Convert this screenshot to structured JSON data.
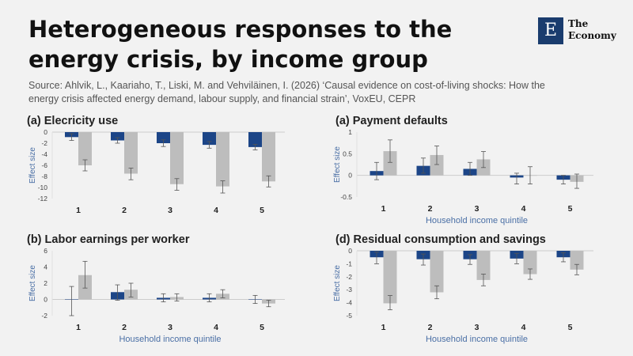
{
  "header": {
    "title": "Heterogeneous responses to the energy crisis, by income group",
    "source": "Source: Ahlvik, L., Kaariaho, T., Liski, M. and Vehviläinen, I. (2026) ‘Causal evidence on cost-of-living shocks: How the energy crisis affected energy demand, labour supply, and financial strain’, VoxEU, CEPR"
  },
  "logo": {
    "mark": "E",
    "line1": "The",
    "line2": "Economy"
  },
  "colors": {
    "series_a": "#1c4587",
    "series_b": "#bdbdbd",
    "axis": "#cccccc",
    "text": "#444444",
    "label": "#4a6fa5"
  },
  "chart_data": [
    {
      "id": "electricity",
      "type": "bar",
      "title": "(a) Elecricity use",
      "xlabel": "",
      "ylabel": "Effect size",
      "categories": [
        "1",
        "2",
        "3",
        "4",
        "5"
      ],
      "ylim": [
        -12,
        0
      ],
      "yticks": [
        0,
        -2,
        -4,
        -6,
        -8,
        -10,
        -12
      ],
      "series": [
        {
          "values": [
            -0.9,
            -1.5,
            -2.0,
            -2.3,
            -2.7
          ],
          "ci_low": [
            -1.5,
            -2.0,
            -2.6,
            -2.9,
            -3.2
          ],
          "ci_high": [
            -0.3,
            -1.0,
            -1.4,
            -1.7,
            -2.2
          ]
        },
        {
          "values": [
            -6.0,
            -7.5,
            -9.4,
            -9.8,
            -8.9
          ],
          "ci_low": [
            -7.0,
            -8.6,
            -10.5,
            -11.0,
            -9.9
          ],
          "ci_high": [
            -5.0,
            -6.5,
            -8.4,
            -8.8,
            -7.9
          ]
        }
      ]
    },
    {
      "id": "payment",
      "type": "bar",
      "title": "(a) Payment defaults",
      "xlabel": "Household income quintile",
      "ylabel": "Effect size",
      "categories": [
        "1",
        "2",
        "3",
        "4",
        "5"
      ],
      "ylim": [
        -0.5,
        1
      ],
      "yticks": [
        1,
        0.5,
        0,
        -0.5
      ],
      "series": [
        {
          "values": [
            0.1,
            0.22,
            0.15,
            -0.05,
            -0.1
          ],
          "ci_low": [
            -0.1,
            0.05,
            0.0,
            -0.2,
            -0.2
          ],
          "ci_high": [
            0.3,
            0.4,
            0.3,
            0.05,
            0.0
          ]
        },
        {
          "values": [
            0.56,
            0.47,
            0.37,
            0.0,
            -0.15
          ],
          "ci_low": [
            0.3,
            0.25,
            0.18,
            -0.2,
            -0.3
          ],
          "ci_high": [
            0.82,
            0.68,
            0.55,
            0.2,
            0.03
          ]
        }
      ]
    },
    {
      "id": "labor",
      "type": "bar",
      "title": "(b) Labor earnings per worker",
      "xlabel": "Household income quintile",
      "ylabel": "Effect size",
      "categories": [
        "1",
        "2",
        "3",
        "4",
        "5"
      ],
      "ylim": [
        -2,
        6
      ],
      "yticks": [
        6,
        4,
        2,
        0,
        -2
      ],
      "series": [
        {
          "values": [
            0.0,
            0.9,
            0.2,
            0.2,
            0.0
          ],
          "ci_low": [
            -2.0,
            -0.1,
            -0.3,
            -0.3,
            -0.5
          ],
          "ci_high": [
            1.6,
            1.8,
            0.7,
            0.7,
            0.5
          ]
        },
        {
          "values": [
            3.0,
            1.2,
            0.3,
            0.7,
            -0.5
          ],
          "ci_low": [
            1.4,
            0.3,
            -0.2,
            0.2,
            -0.9
          ],
          "ci_high": [
            4.7,
            2.0,
            0.7,
            1.2,
            -0.1
          ]
        }
      ]
    },
    {
      "id": "residual",
      "type": "bar",
      "title": "(d) Residual consumption and savings",
      "xlabel": "Household income quintile",
      "ylabel": "Effect size",
      "categories": [
        "1",
        "2",
        "3",
        "4",
        "5"
      ],
      "ylim": [
        -5,
        0
      ],
      "yticks": [
        0,
        -1,
        -2,
        -3,
        -4,
        -5
      ],
      "series": [
        {
          "values": [
            -0.5,
            -0.65,
            -0.65,
            -0.6,
            -0.5
          ],
          "ci_low": [
            -1.0,
            -1.1,
            -1.05,
            -1.0,
            -0.85
          ],
          "ci_high": [
            -0.1,
            -0.25,
            -0.3,
            -0.2,
            -0.15
          ]
        },
        {
          "values": [
            -4.05,
            -3.2,
            -2.25,
            -1.8,
            -1.45
          ],
          "ci_low": [
            -4.55,
            -3.7,
            -2.7,
            -2.2,
            -1.85
          ],
          "ci_high": [
            -3.45,
            -2.7,
            -1.8,
            -1.4,
            -1.05
          ]
        }
      ]
    }
  ]
}
